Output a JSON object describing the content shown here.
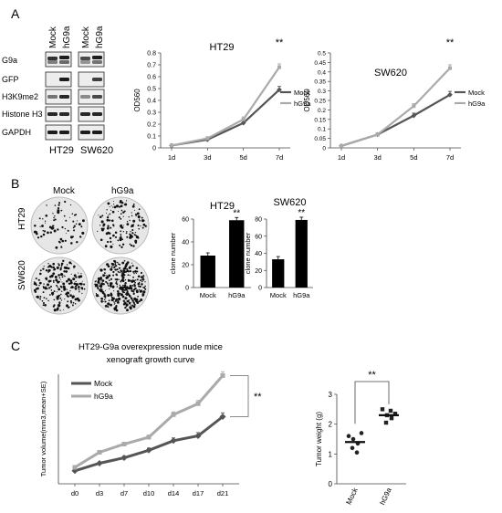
{
  "panel_labels": [
    "A",
    "B",
    "C"
  ],
  "western_blot": {
    "cell_lines": [
      "HT29",
      "SW620"
    ],
    "lane_labels": [
      "Mock",
      "hG9a",
      "Mock",
      "hG9a"
    ],
    "rows": [
      "G9a",
      "GFP",
      "H3K9me2",
      "Histone H3",
      "GAPDH"
    ]
  },
  "colony_assay": {
    "col_labels": [
      "Mock",
      "hG9a"
    ],
    "row_labels": [
      "HT29",
      "SW620"
    ]
  },
  "colors": {
    "mock": "#555555",
    "hg9a": "#aaaaaa",
    "bar": "#000000"
  },
  "chart_data": [
    {
      "type": "line",
      "title": "HT29",
      "xlabel": "",
      "ylabel": "OD560",
      "x": [
        "1d",
        "3d",
        "5d",
        "7d"
      ],
      "ylim": [
        0,
        0.8
      ],
      "yticks": [
        0,
        0.1,
        0.2,
        0.3,
        0.4,
        0.5,
        0.6,
        0.7,
        0.8
      ],
      "series": [
        {
          "name": "Mock",
          "values": [
            0.02,
            0.07,
            0.21,
            0.49
          ]
        },
        {
          "name": "hG9a",
          "values": [
            0.02,
            0.08,
            0.24,
            0.68
          ]
        }
      ],
      "annotation": "**",
      "legend": "right"
    },
    {
      "type": "line",
      "title": "SW620",
      "xlabel": "",
      "ylabel": "OD560",
      "x": [
        "1d",
        "3d",
        "5d",
        "7d"
      ],
      "ylim": [
        0,
        0.5
      ],
      "yticks": [
        0,
        0.05,
        0.1,
        0.15,
        0.2,
        0.25,
        0.3,
        0.35,
        0.4,
        0.45,
        0.5
      ],
      "series": [
        {
          "name": "Mock",
          "values": [
            0.01,
            0.07,
            0.17,
            0.28
          ]
        },
        {
          "name": "hG9a",
          "values": [
            0.01,
            0.07,
            0.22,
            0.42
          ]
        }
      ],
      "annotation": "**",
      "legend": "right"
    },
    {
      "type": "bar",
      "title": "HT29",
      "categories": [
        "Mock",
        "hG9a"
      ],
      "values": [
        28,
        59
      ],
      "ylabel": "clone number",
      "ylim": [
        0,
        60
      ],
      "yticks": [
        0,
        20,
        40,
        60
      ],
      "annotation": "**"
    },
    {
      "type": "bar",
      "title": "SW620",
      "categories": [
        "Mock",
        "hG9a"
      ],
      "values": [
        33,
        79
      ],
      "ylabel": "clone number",
      "ylim": [
        0,
        80
      ],
      "yticks": [
        0,
        20,
        40,
        60,
        80
      ],
      "annotation": "**"
    },
    {
      "type": "line",
      "title": "HT29-G9a overexpression nude mice xenograft growth curve",
      "xlabel": "",
      "ylabel": "Tumor volume(mm3,mean+SE)",
      "x": [
        "d0",
        "d3",
        "d7",
        "d10",
        "d14",
        "d17",
        "d21"
      ],
      "ylim": [
        0,
        1600
      ],
      "series": [
        {
          "name": "Mock",
          "values": [
            190,
            300,
            380,
            490,
            630,
            700,
            980
          ]
        },
        {
          "name": "hG9a",
          "values": [
            240,
            460,
            580,
            680,
            1010,
            1170,
            1580
          ]
        }
      ],
      "annotation": "**",
      "legend": "top-left"
    },
    {
      "type": "scatter",
      "title": "",
      "categories": [
        "Mock",
        "hG9a"
      ],
      "ylabel": "Tumor weight (g)",
      "ylim": [
        0,
        3
      ],
      "yticks": [
        0,
        1,
        2,
        3
      ],
      "points": [
        [
          1.6,
          1.5,
          1.35,
          1.2,
          1.05,
          1.7
        ],
        [
          2.5,
          2.3,
          2.2,
          2.05,
          2.45,
          2.35
        ]
      ],
      "means": [
        1.4,
        2.3
      ],
      "annotation": "**"
    }
  ]
}
